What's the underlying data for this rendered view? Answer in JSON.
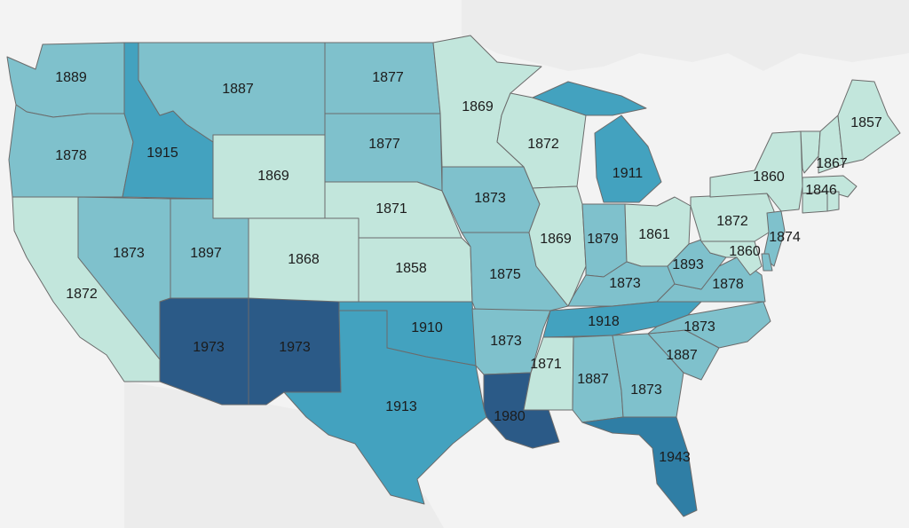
{
  "map": {
    "colors": {
      "background": "#f3f3f3",
      "land": "#e9e9e9",
      "water": "#fbfbfb",
      "stroke": "#6b6b6b"
    },
    "legend_bins": [
      {
        "max": 1872,
        "color": "#c2e6dc"
      },
      {
        "max": 1897,
        "color": "#7fc1cc"
      },
      {
        "max": 1918,
        "color": "#43a2bf"
      },
      {
        "max": 1950,
        "color": "#2f7ea5"
      },
      {
        "max": 2000,
        "color": "#2b5a87"
      }
    ],
    "states": [
      {
        "id": "wa",
        "label": "1889",
        "value": 1889
      },
      {
        "id": "or",
        "label": "1878",
        "value": 1878
      },
      {
        "id": "ca",
        "label": "1872",
        "value": 1872
      },
      {
        "id": "id",
        "label": "1915",
        "value": 1915
      },
      {
        "id": "nv",
        "label": "1873",
        "value": 1873
      },
      {
        "id": "mt",
        "label": "1887",
        "value": 1887
      },
      {
        "id": "wy",
        "label": "1869",
        "value": 1869
      },
      {
        "id": "ut",
        "label": "1897",
        "value": 1897
      },
      {
        "id": "az",
        "label": "1973",
        "value": 1973
      },
      {
        "id": "co",
        "label": "1868",
        "value": 1868
      },
      {
        "id": "nm",
        "label": "1973",
        "value": 1973
      },
      {
        "id": "nd",
        "label": "1877",
        "value": 1877
      },
      {
        "id": "sd",
        "label": "1877",
        "value": 1877
      },
      {
        "id": "ne",
        "label": "1871",
        "value": 1871
      },
      {
        "id": "ks",
        "label": "1858",
        "value": 1858
      },
      {
        "id": "ok",
        "label": "1910",
        "value": 1910
      },
      {
        "id": "tx",
        "label": "1913",
        "value": 1913
      },
      {
        "id": "mn",
        "label": "1869",
        "value": 1869
      },
      {
        "id": "ia",
        "label": "1873",
        "value": 1873
      },
      {
        "id": "mo",
        "label": "1875",
        "value": 1875
      },
      {
        "id": "ar",
        "label": "1873",
        "value": 1873
      },
      {
        "id": "la",
        "label": "1980",
        "value": 1980
      },
      {
        "id": "wi",
        "label": "1872",
        "value": 1872
      },
      {
        "id": "il",
        "label": "1869",
        "value": 1869
      },
      {
        "id": "mi",
        "label": "1911",
        "value": 1911
      },
      {
        "id": "in",
        "label": "1879",
        "value": 1879
      },
      {
        "id": "oh",
        "label": "1861",
        "value": 1861
      },
      {
        "id": "ky",
        "label": "1873",
        "value": 1873
      },
      {
        "id": "tn",
        "label": "1918",
        "value": 1918
      },
      {
        "id": "ms",
        "label": "1871",
        "value": 1871
      },
      {
        "id": "al",
        "label": "1887",
        "value": 1887
      },
      {
        "id": "ga",
        "label": "1873",
        "value": 1873
      },
      {
        "id": "fl",
        "label": "1943",
        "value": 1943
      },
      {
        "id": "sc",
        "label": "1887",
        "value": 1887
      },
      {
        "id": "nc",
        "label": "1873",
        "value": 1873
      },
      {
        "id": "va",
        "label": "1878",
        "value": 1878
      },
      {
        "id": "wv",
        "label": "1893",
        "value": 1893
      },
      {
        "id": "pa",
        "label": "1872",
        "value": 1872
      },
      {
        "id": "ny",
        "label": "1860",
        "value": 1860
      },
      {
        "id": "vt",
        "label": "1867",
        "value": 1867
      },
      {
        "id": "nh",
        "label": "1867",
        "value": 1867
      },
      {
        "id": "me",
        "label": "1857",
        "value": 1857
      },
      {
        "id": "ma",
        "label": "1846",
        "value": 1846
      },
      {
        "id": "ct",
        "label": "1846",
        "value": 1846
      },
      {
        "id": "ri",
        "label": "1846",
        "value": 1846
      },
      {
        "id": "nj",
        "label": "1874",
        "value": 1874
      },
      {
        "id": "de",
        "label": "1874",
        "value": 1874
      },
      {
        "id": "md",
        "label": "1860",
        "value": 1860
      }
    ]
  }
}
